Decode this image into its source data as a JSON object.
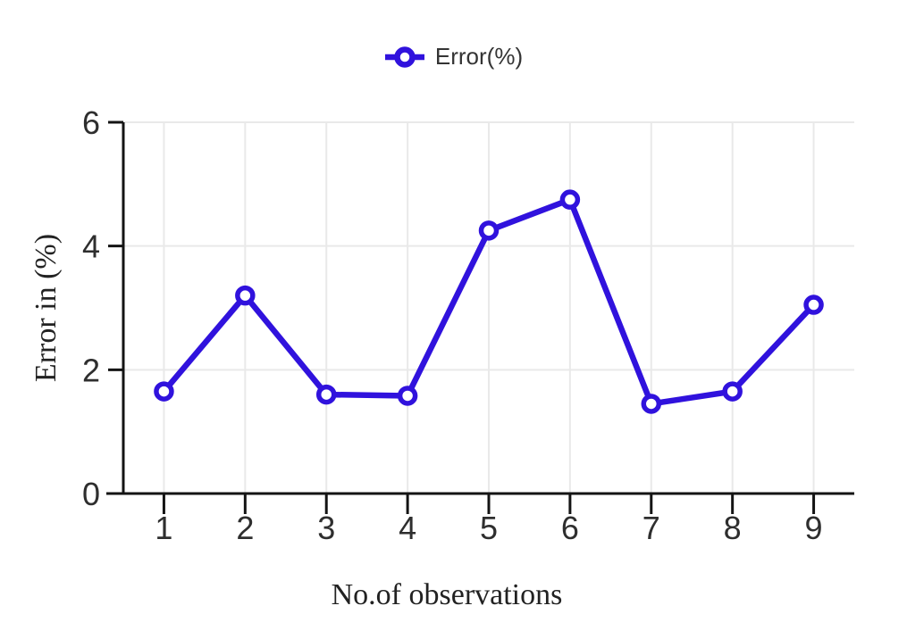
{
  "chart_data": {
    "type": "line",
    "title": "",
    "xlabel": "No.of observations",
    "ylabel": "Error in (%)",
    "x": [
      1,
      2,
      3,
      4,
      5,
      6,
      7,
      8,
      9
    ],
    "series": [
      {
        "name": "Error(%)",
        "values": [
          1.65,
          3.2,
          1.6,
          1.58,
          4.25,
          4.75,
          1.45,
          1.65,
          3.05
        ],
        "color": "#3012dd",
        "marker": "open-circle"
      }
    ],
    "xlim": [
      0.5,
      9.5
    ],
    "ylim": [
      0,
      6
    ],
    "xticks": [
      1,
      2,
      3,
      4,
      5,
      6,
      7,
      8,
      9
    ],
    "yticks": [
      0,
      2,
      4,
      6
    ],
    "grid": true,
    "legend_position": "top-center"
  },
  "colors": {
    "series": "#3012dd",
    "marker_fill": "#ffffff",
    "grid": "#e9e9e9",
    "axis": "#141414",
    "tick_label": "#2e2e2e",
    "axis_title": "#222222",
    "legend_text": "#343434",
    "background": "#ffffff"
  },
  "legend": {
    "items": [
      {
        "label": "Error(%)",
        "swatch": "open-circle-on-line"
      }
    ]
  }
}
